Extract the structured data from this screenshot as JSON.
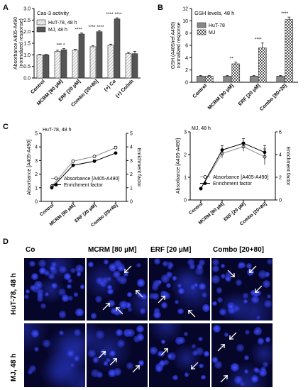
{
  "panel_labels": {
    "a": "A",
    "b": "B",
    "c": "C",
    "d": "D"
  },
  "chart_data": [
    {
      "id": "A",
      "type": "bar",
      "title": "Cas-3 activity",
      "ylabel_line1": "Absorbance A405-A490",
      "ylabel_line2": "(normalized response)",
      "ylim": [
        0,
        3.0
      ],
      "yticks": [
        "0.0",
        "0.5",
        "1.0",
        "1.5",
        "2.0",
        "2.5",
        "3.0"
      ],
      "categories": [
        "Control",
        "MCRM [80 µM]",
        "ERF [20 µM]",
        "Combo [20+80]",
        "(+) Co",
        "(+) Co/inh"
      ],
      "series": [
        {
          "name": "HuT-78, 48 h",
          "values": [
            1.0,
            1.15,
            1.2,
            1.35,
            1.42,
            1.05
          ],
          "errors": [
            0.02,
            0.05,
            0.04,
            0.05,
            0.04,
            0.06
          ],
          "color": "#e8e8e8",
          "pattern": "hatch"
        },
        {
          "name": "MJ, 48 h",
          "values": [
            1.0,
            1.22,
            1.9,
            2.0,
            2.55,
            1.05
          ],
          "errors": [
            0.02,
            0.05,
            0.05,
            0.05,
            0.05,
            0.1
          ],
          "color": "#555555",
          "pattern": "solid"
        }
      ],
      "annotations": [
        "",
        "*** *",
        "****",
        "**** ****",
        "**** ****",
        ""
      ]
    },
    {
      "id": "B",
      "type": "bar",
      "title": "GSH levels, 48 h",
      "ylabel_line1": "GSH (A405/ref A490)",
      "ylabel_line2": "normalized response",
      "ylim": [
        0,
        12
      ],
      "yticks": [
        "0",
        "2",
        "4",
        "6",
        "8",
        "10",
        "12"
      ],
      "categories": [
        "Control",
        "MCRM [80 µM]",
        "ERF [20 µM]",
        "Combo [80+20]"
      ],
      "series": [
        {
          "name": "HuT-78",
          "values": [
            1.0,
            1.0,
            1.0,
            1.0
          ],
          "errors": [
            0.1,
            0.1,
            0.1,
            0.1
          ],
          "color": "#888888",
          "pattern": "solid"
        },
        {
          "name": "MJ",
          "values": [
            1.0,
            3.0,
            5.6,
            10.2
          ],
          "errors": [
            0.1,
            0.3,
            0.8,
            0.4
          ],
          "color": "#ffffff",
          "pattern": "check"
        }
      ],
      "annotations": [
        "",
        "**",
        "****",
        "****"
      ]
    },
    {
      "id": "C1",
      "type": "line",
      "title": "HuT-78, 48 h",
      "ylabel": "Absorbance [A405-A490]",
      "y2label": "Enrichment factor",
      "ylim": [
        0,
        5
      ],
      "yticks": [
        "0",
        "1",
        "2",
        "3",
        "4",
        "5"
      ],
      "y2lim": [
        0,
        5
      ],
      "y2ticks": [
        "0",
        "1",
        "2",
        "3",
        "4",
        "5"
      ],
      "categories": [
        "Control",
        "MCRM [80 µM]",
        "ERF [20 µM]",
        "Combo [20+80]"
      ],
      "series": [
        {
          "name": "Absorbance [A405-A490]",
          "values": [
            1.1,
            2.95,
            3.3,
            3.95
          ],
          "errors": [
            0.05,
            0.08,
            0.08,
            0.08
          ],
          "marker": "open"
        },
        {
          "name": "Enrichment factor",
          "values": [
            1.0,
            2.65,
            2.95,
            3.55
          ],
          "errors": [
            0.05,
            0.08,
            0.1,
            0.08
          ],
          "marker": "filled"
        }
      ]
    },
    {
      "id": "C2",
      "type": "line",
      "title": "MJ, 48 h",
      "ylabel": "Absorbance [A405-A490]",
      "y2label": "Enrichment factor",
      "ylim": [
        0,
        3
      ],
      "yticks": [
        "0",
        "1",
        "2",
        "3"
      ],
      "y2lim": [
        0,
        6
      ],
      "y2ticks": [
        "0",
        "2",
        "4",
        "6"
      ],
      "categories": [
        "Control",
        "MCRM [80 µM]",
        "ERF [20 µM]",
        "Combo [20+80]"
      ],
      "series": [
        {
          "name": "Absorbance [A405-A490]",
          "values": [
            0.5,
            2.05,
            2.35,
            1.9
          ],
          "errors": [
            0.03,
            0.2,
            0.2,
            0.35
          ],
          "marker": "open"
        },
        {
          "name": "Enrichment factor",
          "values": [
            0.5,
            2.2,
            2.5,
            2.1
          ],
          "errors": [
            0.03,
            0.2,
            0.2,
            0.3
          ],
          "marker": "filled"
        }
      ]
    }
  ],
  "microscopy": {
    "columns": [
      "Co",
      "MCRM [80 µM]",
      "ERF [20 µM]",
      "Combo [20+80]"
    ],
    "rows": [
      "HuT-78, 48 h",
      "MJ, 48 h"
    ]
  }
}
